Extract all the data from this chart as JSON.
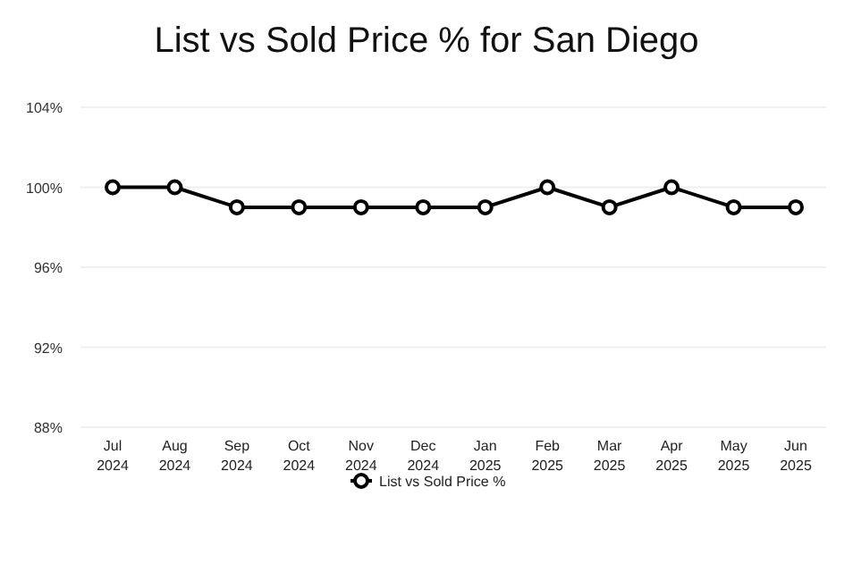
{
  "chart_data": {
    "type": "line",
    "title": "List vs Sold Price % for San Diego",
    "categories": [
      "Jul 2024",
      "Aug 2024",
      "Sep 2024",
      "Oct 2024",
      "Nov 2024",
      "Dec 2024",
      "Jan 2025",
      "Feb 2025",
      "Mar 2025",
      "Apr 2025",
      "May 2025",
      "Jun 2025"
    ],
    "series": [
      {
        "name": "List vs Sold Price %",
        "color": "#000000",
        "values": [
          100,
          100,
          99,
          99,
          99,
          99,
          99,
          100,
          99,
          100,
          99,
          99
        ]
      }
    ],
    "ylim": [
      88,
      104
    ],
    "yticks": [
      {
        "value": 88,
        "label": "88%"
      },
      {
        "value": 92,
        "label": "92%"
      },
      {
        "value": 96,
        "label": "96%"
      },
      {
        "value": 100,
        "label": "100%"
      },
      {
        "value": 104,
        "label": "104%"
      }
    ],
    "grid": "y",
    "legend": "bottom",
    "marker": "circle",
    "line_style": "solid"
  }
}
